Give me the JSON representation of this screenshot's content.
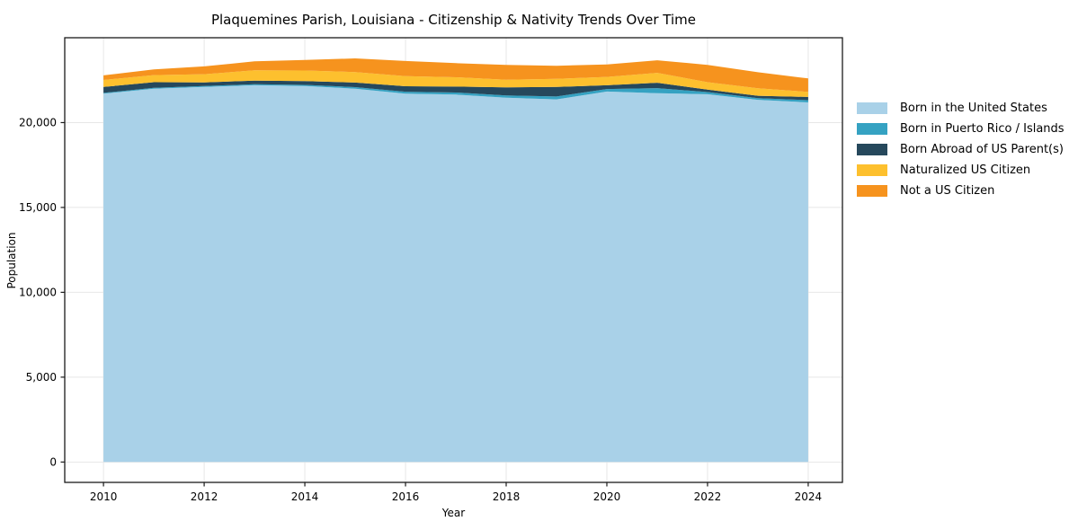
{
  "page": {
    "background": "#ffffff"
  },
  "chart_data": {
    "type": "area",
    "stacked": true,
    "title": "Plaquemines Parish, Louisiana - Citizenship & Nativity Trends Over Time",
    "xlabel": "Year",
    "ylabel": "Population",
    "x": [
      2010,
      2011,
      2012,
      2013,
      2014,
      2015,
      2016,
      2017,
      2018,
      2019,
      2020,
      2021,
      2022,
      2023,
      2024
    ],
    "series": [
      {
        "name": "Born in the United States",
        "color": "#a9d1e8",
        "values": [
          21700,
          22000,
          22100,
          22200,
          22150,
          22000,
          21700,
          21650,
          21470,
          21370,
          21830,
          21730,
          21670,
          21340,
          21190
        ]
      },
      {
        "name": "Born in Puerto Rico / Islands",
        "color": "#35a2c2",
        "values": [
          50,
          50,
          50,
          60,
          70,
          90,
          120,
          120,
          130,
          170,
          150,
          300,
          130,
          100,
          130
        ]
      },
      {
        "name": "Born Abroad of US Parent(s)",
        "color": "#26485c",
        "values": [
          350,
          330,
          220,
          210,
          230,
          270,
          320,
          350,
          480,
          560,
          220,
          320,
          140,
          140,
          190
        ]
      },
      {
        "name": "Naturalized US Citizen",
        "color": "#fdc02e",
        "values": [
          410,
          420,
          480,
          610,
          620,
          620,
          600,
          550,
          450,
          480,
          490,
          580,
          440,
          440,
          300
        ]
      },
      {
        "name": "Not a US Citizen",
        "color": "#f6931e",
        "values": [
          270,
          330,
          460,
          530,
          620,
          800,
          890,
          830,
          870,
          770,
          740,
          740,
          1020,
          950,
          790
        ]
      }
    ],
    "xticks": {
      "values": [
        2010,
        2012,
        2014,
        2016,
        2018,
        2020,
        2022,
        2024
      ],
      "labels": [
        "2010",
        "2012",
        "2014",
        "2016",
        "2018",
        "2020",
        "2022",
        "2024"
      ]
    },
    "yticks": {
      "values": [
        0,
        5000,
        10000,
        15000,
        20000
      ],
      "labels": [
        "0",
        "5,000",
        "10,000",
        "15,000",
        "20,000"
      ]
    },
    "xlim": [
      2009.23,
      2024.68
    ],
    "ylim": [
      -1200,
      25000
    ],
    "grid": true,
    "grid_color": "#e7e7e7",
    "spine_color": "#1a1a1a",
    "legend_position": "right"
  }
}
